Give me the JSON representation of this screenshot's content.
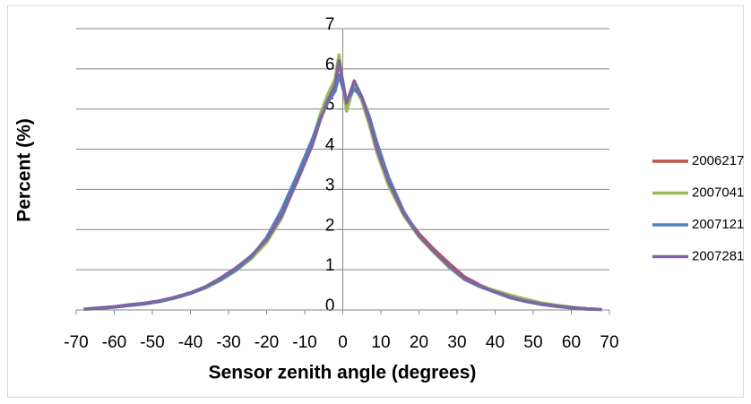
{
  "chart_data": {
    "type": "line",
    "x_label": "Sensor zenith angle (degrees)",
    "y_label": "Percent (%)",
    "x": [
      -68,
      -64,
      -60,
      -56,
      -52,
      -48,
      -44,
      -40,
      -36,
      -32,
      -28,
      -24,
      -20,
      -16,
      -12,
      -8,
      -6,
      -4,
      -2,
      -1,
      1,
      3,
      5,
      7,
      9,
      12,
      16,
      20,
      24,
      28,
      32,
      36,
      40,
      44,
      48,
      52,
      56,
      60,
      64,
      68
    ],
    "series": [
      {
        "name": "2006217",
        "color": "#c0504d",
        "values": [
          0.02,
          0.05,
          0.08,
          0.12,
          0.16,
          0.22,
          0.31,
          0.42,
          0.57,
          0.78,
          1.02,
          1.32,
          1.72,
          2.35,
          3.2,
          4.15,
          4.75,
          5.25,
          5.65,
          6.25,
          5.1,
          5.65,
          5.25,
          4.65,
          3.95,
          3.15,
          2.4,
          1.9,
          1.5,
          1.15,
          0.82,
          0.62,
          0.46,
          0.33,
          0.23,
          0.15,
          0.1,
          0.06,
          0.03,
          0.01
        ]
      },
      {
        "name": "2007041",
        "color": "#9bbb59",
        "values": [
          0.02,
          0.04,
          0.07,
          0.11,
          0.15,
          0.21,
          0.3,
          0.41,
          0.55,
          0.74,
          0.98,
          1.28,
          1.68,
          2.3,
          3.25,
          4.2,
          4.85,
          5.35,
          5.75,
          6.35,
          4.95,
          5.6,
          5.2,
          4.6,
          3.9,
          3.1,
          2.35,
          1.82,
          1.42,
          1.05,
          0.76,
          0.6,
          0.48,
          0.37,
          0.27,
          0.18,
          0.12,
          0.07,
          0.03,
          0.01
        ]
      },
      {
        "name": "2007121",
        "color": "#4f81bd",
        "values": [
          0.02,
          0.04,
          0.07,
          0.11,
          0.15,
          0.21,
          0.3,
          0.41,
          0.56,
          0.76,
          1.0,
          1.32,
          1.8,
          2.5,
          3.35,
          4.25,
          4.75,
          5.15,
          5.45,
          5.85,
          5.2,
          5.5,
          5.3,
          4.8,
          4.15,
          3.3,
          2.45,
          1.85,
          1.45,
          1.08,
          0.76,
          0.58,
          0.44,
          0.3,
          0.21,
          0.14,
          0.09,
          0.05,
          0.02,
          0.01
        ]
      },
      {
        "name": "2007281",
        "color": "#8064a2",
        "values": [
          0.02,
          0.05,
          0.08,
          0.13,
          0.17,
          0.23,
          0.32,
          0.43,
          0.58,
          0.8,
          1.05,
          1.35,
          1.75,
          2.35,
          3.2,
          4.1,
          4.7,
          5.2,
          5.6,
          6.2,
          5.15,
          5.7,
          5.3,
          4.7,
          4.0,
          3.2,
          2.4,
          1.85,
          1.45,
          1.1,
          0.78,
          0.6,
          0.45,
          0.32,
          0.22,
          0.15,
          0.1,
          0.06,
          0.03,
          0.01
        ]
      }
    ],
    "xlim": [
      -70,
      70
    ],
    "xticks": [
      -70,
      -60,
      -50,
      -40,
      -30,
      -20,
      -10,
      0,
      10,
      20,
      30,
      40,
      50,
      60,
      70
    ],
    "ylim": [
      0,
      7
    ],
    "yticks": [
      0,
      1,
      2,
      3,
      4,
      5,
      6,
      7
    ],
    "grid": true,
    "legend": "right"
  }
}
